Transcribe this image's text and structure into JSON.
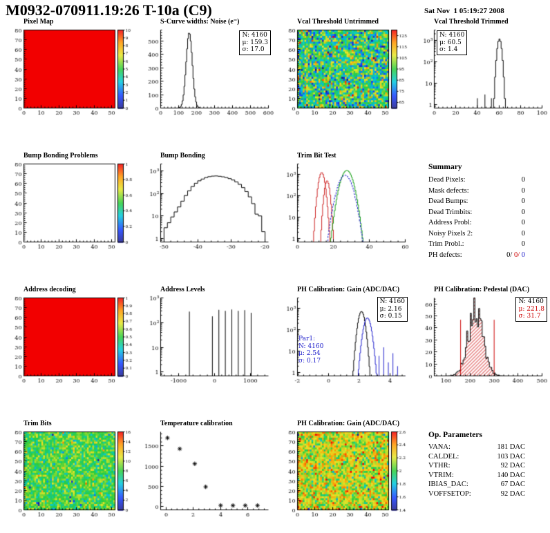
{
  "header": {
    "title": "M0932-070911.19:26 T-10a (C9)",
    "date": "Sat Nov  1 05:19:27 2008"
  },
  "colors": {
    "accent_red": "#cc0000",
    "accent_blue": "#2020cc",
    "map_red": "#f20000"
  },
  "chart_data": [
    {
      "id": "pixel-map",
      "title": "Pixel Map",
      "type": "heatmap",
      "xlim": [
        0,
        52
      ],
      "ylim": [
        0,
        80
      ],
      "xticks": [
        0,
        10,
        20,
        30,
        40,
        50
      ],
      "yticks": [
        0,
        10,
        20,
        30,
        40,
        50,
        60,
        70,
        80
      ],
      "zlim": [
        0,
        10
      ],
      "zticks": [
        0,
        1,
        2,
        3,
        4,
        5,
        6,
        7,
        8,
        9,
        10
      ],
      "map": {
        "mode": "uniform",
        "seed": 1
      }
    },
    {
      "id": "scurve-noise",
      "title": "S-Curve widths: Noise (e⁻)",
      "type": "hist",
      "xlim": [
        0,
        600
      ],
      "xticks": [
        0,
        100,
        200,
        300,
        400,
        500,
        600
      ],
      "ylim": [
        0,
        580
      ],
      "yticks": [
        0,
        100,
        200,
        300,
        400,
        500
      ],
      "series": [
        {
          "color": "#000000",
          "nbins": 120,
          "gaussian": {
            "mu": 159.3,
            "sigma": 17.0,
            "amp": 560
          }
        }
      ],
      "stats": [
        "N: 4160",
        "μ: 159.3",
        "σ: 17.0"
      ]
    },
    {
      "id": "vcal-threshold-untrimmed",
      "title": "Vcal Threshold Untrimmed",
      "type": "heatmap",
      "xlim": [
        0,
        52
      ],
      "ylim": [
        0,
        80
      ],
      "xticks": [
        0,
        10,
        20,
        30,
        40,
        50
      ],
      "yticks": [
        0,
        10,
        20,
        30,
        40,
        50,
        60,
        70,
        80
      ],
      "zlim": [
        60,
        130
      ],
      "zticks": [
        65,
        75,
        85,
        95,
        105,
        115,
        125
      ],
      "map": {
        "mode": "noise",
        "mean": 93,
        "sd": 13,
        "outlier": 0.03,
        "seed": 7
      }
    },
    {
      "id": "vcal-threshold-trimmed",
      "title": "Vcal Threshold Trimmed",
      "type": "hist",
      "xlim": [
        0,
        100
      ],
      "xticks": [
        0,
        20,
        40,
        60,
        80,
        100
      ],
      "ylog": true,
      "ylim": [
        0.7,
        3000
      ],
      "series": [
        {
          "color": "#000000",
          "nbins": 100,
          "gaussian": {
            "mu": 60.5,
            "sigma": 1.4,
            "amp": 1150
          },
          "extras": [
            [
              40,
              2
            ],
            [
              47,
              3
            ],
            [
              53,
              2
            ]
          ]
        }
      ],
      "stats": [
        "N: 4160",
        "μ: 60.5",
        "σ: 1.4"
      ]
    },
    {
      "id": "bump-bonding-problems",
      "title": "Bump Bonding Problems",
      "type": "heatmap",
      "xlim": [
        0,
        52
      ],
      "ylim": [
        0,
        80
      ],
      "xticks": [
        0,
        10,
        20,
        30,
        40,
        50
      ],
      "yticks": [
        0,
        10,
        20,
        30,
        40,
        50,
        60,
        70,
        80
      ],
      "zlim": [
        0,
        1
      ],
      "zticks": [
        0,
        0.2,
        0.4,
        0.6,
        0.8,
        1
      ],
      "map": {
        "mode": "empty"
      }
    },
    {
      "id": "bump-bonding",
      "title": "Bump Bonding",
      "type": "hist",
      "xlim": [
        -51,
        -19
      ],
      "xticks": [
        -50,
        -40,
        -30,
        -20
      ],
      "ylog": true,
      "ylim": [
        0.7,
        2000
      ],
      "series": [
        {
          "color": "#000000",
          "bins": {
            "x0": -50,
            "dx": 1,
            "values": [
              3,
              5,
              9,
              15,
              25,
              45,
              80,
              130,
              200,
              280,
              360,
              430,
              500,
              550,
              580,
              590,
              570,
              540,
              500,
              450,
              390,
              320,
              250,
              180,
              120,
              70,
              35,
              12,
              10,
              2
            ]
          }
        }
      ]
    },
    {
      "id": "trim-bit-test",
      "title": "Trim Bit Test",
      "type": "hist",
      "xlim": [
        0,
        60
      ],
      "xticks": [
        0,
        20,
        40,
        60
      ],
      "ylog": true,
      "ylim": [
        0.7,
        3000
      ],
      "series": [
        {
          "color": "#cc2020",
          "nbins": 120,
          "gaussian": {
            "mu": 13.5,
            "sigma": 1.2,
            "amp": 1200
          }
        },
        {
          "color": "#cc2020",
          "nbins": 120,
          "gaussian": {
            "mu": 16.5,
            "sigma": 1.0,
            "amp": 500
          }
        },
        {
          "color": "#18a018",
          "nbins": 120,
          "gaussian": {
            "mu": 27.5,
            "sigma": 2.3,
            "amp": 1500
          }
        },
        {
          "color": "#2020cc",
          "nbins": 120,
          "dash": true,
          "gaussian": {
            "mu": 26.5,
            "sigma": 2.6,
            "amp": 900
          }
        }
      ]
    },
    {
      "id": "address-decoding",
      "title": "Address decoding",
      "type": "heatmap",
      "xlim": [
        0,
        52
      ],
      "ylim": [
        0,
        80
      ],
      "xticks": [
        0,
        10,
        20,
        30,
        40,
        50
      ],
      "yticks": [
        0,
        10,
        20,
        30,
        40,
        50,
        60,
        70,
        80
      ],
      "zlim": [
        0,
        1
      ],
      "zticks": [
        0,
        0.1,
        0.2,
        0.3,
        0.4,
        0.5,
        0.6,
        0.7,
        0.8,
        0.9,
        1
      ],
      "map": {
        "mode": "uniform",
        "seed": 2
      }
    },
    {
      "id": "address-levels",
      "title": "Address Levels",
      "type": "spikes",
      "xlim": [
        -1500,
        1500
      ],
      "xticks": [
        -1000,
        0,
        1000
      ],
      "ylog": true,
      "ylim": [
        0.7,
        1000
      ],
      "spikes": [
        [
          -700,
          280
        ],
        [
          -60,
          180
        ],
        [
          120,
          330
        ],
        [
          300,
          300
        ],
        [
          480,
          340
        ],
        [
          660,
          300
        ],
        [
          840,
          320
        ],
        [
          1020,
          250
        ]
      ]
    },
    {
      "id": "ph-calibration-gain",
      "title": "PH Calibration: Gain (ADC/DAC)",
      "type": "hist",
      "xlim": [
        -2,
        5
      ],
      "xticks": [
        -2,
        0,
        2,
        4
      ],
      "ylog": true,
      "ylim": [
        0.7,
        3000
      ],
      "series": [
        {
          "color": "#000000",
          "nbins": 140,
          "gaussian": {
            "mu": 2.16,
            "sigma": 0.15,
            "amp": 700
          }
        },
        {
          "color": "#2020cc",
          "nbins": 140,
          "gaussian": {
            "mu": 2.54,
            "sigma": 0.17,
            "amp": 350
          },
          "extras": [
            [
              3.3,
              6
            ],
            [
              3.6,
              15
            ],
            [
              3.9,
              3
            ],
            [
              4.2,
              8
            ],
            [
              4.5,
              2
            ]
          ]
        }
      ],
      "stats": [
        "N: 4160",
        "μ: 2.16",
        "σ: 0.15"
      ],
      "stats2": [
        "Par1:",
        "N: 4160",
        "μ: 2.54",
        "σ: 0.17"
      ]
    },
    {
      "id": "ph-calibration-pedestal",
      "title": "PH Calibration: Pedestal (DAC)",
      "type": "hist",
      "xlim": [
        50,
        500
      ],
      "xticks": [
        100,
        200,
        300,
        400,
        500
      ],
      "ylim": [
        0,
        65
      ],
      "yticks": [
        0,
        10,
        20,
        30,
        40,
        50,
        60
      ],
      "series": [
        {
          "color": "#000000",
          "nbins": 90,
          "gaussian": {
            "mu": 221.8,
            "sigma": 31.7,
            "amp": 52
          },
          "noise": 0.6,
          "seed": 5,
          "fill": "hatch-red"
        }
      ],
      "vlines": {
        "color": "#cc0000",
        "xs": [
          160,
          300
        ],
        "frac": 0.72
      },
      "stats": [
        "N: 4160",
        "μ: 221.8",
        "σ: 31.7"
      ]
    },
    {
      "id": "trim-bits",
      "title": "Trim Bits",
      "type": "heatmap",
      "xlim": [
        0,
        52
      ],
      "ylim": [
        0,
        80
      ],
      "xticks": [
        0,
        10,
        20,
        30,
        40,
        50
      ],
      "yticks": [
        0,
        10,
        20,
        30,
        40,
        50,
        60,
        70,
        80
      ],
      "zlim": [
        0,
        16
      ],
      "zticks": [
        0,
        2,
        4,
        6,
        8,
        10,
        12,
        14,
        16
      ],
      "map": {
        "mode": "noise",
        "mean": 8.3,
        "sd": 1.5,
        "outlier": 0.02,
        "seed": 11
      }
    },
    {
      "id": "temperature-calibration",
      "title": "Temperature calibration",
      "type": "scatter",
      "xlim": [
        -0.4,
        7.5
      ],
      "xticks": [
        0,
        2,
        4,
        6
      ],
      "ylim": [
        -80,
        1850
      ],
      "yticks": [
        0,
        500,
        1000,
        1500
      ],
      "points": [
        [
          0.1,
          1700
        ],
        [
          1,
          1430
        ],
        [
          2.1,
          1060
        ],
        [
          2.9,
          490
        ],
        [
          4,
          30
        ],
        [
          4.9,
          28
        ],
        [
          5.8,
          28
        ],
        [
          6.7,
          28
        ]
      ]
    },
    {
      "id": "ph-calibration-gain-map",
      "title": "PH Calibration: Gain (ADC/DAC)",
      "type": "heatmap",
      "xlim": [
        0,
        52
      ],
      "ylim": [
        0,
        80
      ],
      "xticks": [
        0,
        10,
        20,
        30,
        40,
        50
      ],
      "yticks": [
        0,
        10,
        20,
        30,
        40,
        50,
        60,
        70,
        80
      ],
      "zlim": [
        1.4,
        2.6
      ],
      "zticks": [
        1.4,
        1.6,
        1.8,
        2,
        2.2,
        2.4,
        2.6
      ],
      "map": {
        "mode": "noise",
        "mean": 2.2,
        "sd": 0.16,
        "outlier": 0.01,
        "seed": 13
      }
    }
  ],
  "summary": {
    "title": "Summary",
    "rows": [
      [
        "Dead Pixels:",
        "0"
      ],
      [
        "Mask defects:",
        "0"
      ],
      [
        "Dead Bumps:",
        "0"
      ],
      [
        "Dead Trimbits:",
        "0"
      ],
      [
        "Address Probl:",
        "0"
      ],
      [
        "Noisy Pixels 2:",
        "0"
      ],
      [
        "Trim Probl.:",
        "0"
      ]
    ],
    "ph": {
      "label": "PH defects:",
      "values": [
        "0/",
        " 0/",
        " 0"
      ]
    }
  },
  "op_parameters": {
    "title": "Op. Parameters",
    "rows": [
      [
        "VANA:",
        "181 DAC"
      ],
      [
        "CALDEL:",
        "103 DAC"
      ],
      [
        "VTHR:",
        "92 DAC"
      ],
      [
        "VTRIM:",
        "140 DAC"
      ],
      [
        "IBIAS_DAC:",
        "67 DAC"
      ],
      [
        "VOFFSETOP:",
        "92 DAC"
      ]
    ]
  }
}
